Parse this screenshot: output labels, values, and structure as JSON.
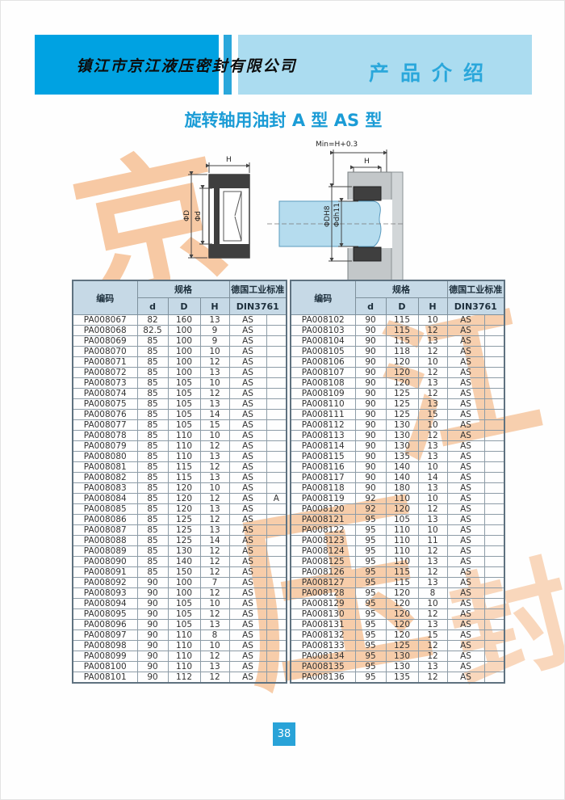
{
  "header": {
    "company": "镇江市京江液压密封有限公司",
    "section": "产品介绍"
  },
  "title": "旋转轴用油封 A 型  AS 型",
  "diagram": {
    "h_left": "H",
    "min_label": "Min=H+0.3",
    "h_right": "H",
    "phi_D": "ΦD",
    "phi_d": "Φd",
    "phi_DH8": "ΦDH8",
    "phi_dh11": "Φdh11"
  },
  "watermark": {
    "char1": "京",
    "char2": "江",
    "char3": "压",
    "char4": "封",
    "color": "#f3aa6e"
  },
  "colors": {
    "band_dark": "#00a2e2",
    "band_stripe": "#2aa7db",
    "band_light": "#abdcf0",
    "section_text": "#2aa7db",
    "title_text": "#1b9cd6",
    "table_header_bg": "#c6d9e6",
    "page_num_bg": "#29a3d8",
    "shaft_fill": "#b5dcee",
    "housing_fill": "#c3c7c9"
  },
  "tables": {
    "headers": {
      "code": "编码",
      "spec": "规格",
      "d": "d",
      "D": "D",
      "H": "H",
      "std": "德国工业标准",
      "std2": "DIN3761"
    },
    "left_rows": [
      [
        "PA008067",
        "82",
        "160",
        "13",
        "AS",
        ""
      ],
      [
        "PA008068",
        "82.5",
        "100",
        "9",
        "AS",
        ""
      ],
      [
        "PA008069",
        "85",
        "100",
        "9",
        "AS",
        ""
      ],
      [
        "PA008070",
        "85",
        "100",
        "10",
        "AS",
        ""
      ],
      [
        "PA008071",
        "85",
        "100",
        "12",
        "AS",
        ""
      ],
      [
        "PA008072",
        "85",
        "100",
        "13",
        "AS",
        ""
      ],
      [
        "PA008073",
        "85",
        "105",
        "10",
        "AS",
        ""
      ],
      [
        "PA008074",
        "85",
        "105",
        "12",
        "AS",
        ""
      ],
      [
        "PA008075",
        "85",
        "105",
        "13",
        "AS",
        ""
      ],
      [
        "PA008076",
        "85",
        "105",
        "14",
        "AS",
        ""
      ],
      [
        "PA008077",
        "85",
        "105",
        "15",
        "AS",
        ""
      ],
      [
        "PA008078",
        "85",
        "110",
        "10",
        "AS",
        ""
      ],
      [
        "PA008079",
        "85",
        "110",
        "12",
        "AS",
        ""
      ],
      [
        "PA008080",
        "85",
        "110",
        "13",
        "AS",
        ""
      ],
      [
        "PA008081",
        "85",
        "115",
        "12",
        "AS",
        ""
      ],
      [
        "PA008082",
        "85",
        "115",
        "13",
        "AS",
        ""
      ],
      [
        "PA008083",
        "85",
        "120",
        "10",
        "AS",
        ""
      ],
      [
        "PA008084",
        "85",
        "120",
        "12",
        "AS",
        "A"
      ],
      [
        "PA008085",
        "85",
        "120",
        "13",
        "AS",
        ""
      ],
      [
        "PA008086",
        "85",
        "125",
        "12",
        "AS",
        ""
      ],
      [
        "PA008087",
        "85",
        "125",
        "13",
        "AS",
        ""
      ],
      [
        "PA008088",
        "85",
        "125",
        "14",
        "AS",
        ""
      ],
      [
        "PA008089",
        "85",
        "130",
        "12",
        "AS",
        ""
      ],
      [
        "PA008090",
        "85",
        "140",
        "12",
        "AS",
        ""
      ],
      [
        "PA008091",
        "85",
        "150",
        "12",
        "AS",
        ""
      ],
      [
        "PA008092",
        "90",
        "100",
        "7",
        "AS",
        ""
      ],
      [
        "PA008093",
        "90",
        "100",
        "12",
        "AS",
        ""
      ],
      [
        "PA008094",
        "90",
        "105",
        "10",
        "AS",
        ""
      ],
      [
        "PA008095",
        "90",
        "105",
        "12",
        "AS",
        ""
      ],
      [
        "PA008096",
        "90",
        "105",
        "13",
        "AS",
        ""
      ],
      [
        "PA008097",
        "90",
        "110",
        "8",
        "AS",
        ""
      ],
      [
        "PA008098",
        "90",
        "110",
        "10",
        "AS",
        ""
      ],
      [
        "PA008099",
        "90",
        "110",
        "12",
        "AS",
        ""
      ],
      [
        "PA008100",
        "90",
        "110",
        "13",
        "AS",
        ""
      ],
      [
        "PA008101",
        "90",
        "112",
        "12",
        "AS",
        ""
      ]
    ],
    "right_rows": [
      [
        "PA008102",
        "90",
        "115",
        "10",
        "AS",
        ""
      ],
      [
        "PA008103",
        "90",
        "115",
        "12",
        "AS",
        ""
      ],
      [
        "PA008104",
        "90",
        "115",
        "13",
        "AS",
        ""
      ],
      [
        "PA008105",
        "90",
        "118",
        "12",
        "AS",
        ""
      ],
      [
        "PA008106",
        "90",
        "120",
        "10",
        "AS",
        ""
      ],
      [
        "PA008107",
        "90",
        "120",
        "12",
        "AS",
        ""
      ],
      [
        "PA008108",
        "90",
        "120",
        "13",
        "AS",
        ""
      ],
      [
        "PA008109",
        "90",
        "125",
        "12",
        "AS",
        ""
      ],
      [
        "PA008110",
        "90",
        "125",
        "13",
        "AS",
        ""
      ],
      [
        "PA008111",
        "90",
        "125",
        "15",
        "AS",
        ""
      ],
      [
        "PA008112",
        "90",
        "130",
        "10",
        "AS",
        ""
      ],
      [
        "PA008113",
        "90",
        "130",
        "12",
        "AS",
        ""
      ],
      [
        "PA008114",
        "90",
        "130",
        "13",
        "AS",
        ""
      ],
      [
        "PA008115",
        "90",
        "135",
        "13",
        "AS",
        ""
      ],
      [
        "PA008116",
        "90",
        "140",
        "10",
        "AS",
        ""
      ],
      [
        "PA008117",
        "90",
        "140",
        "14",
        "AS",
        ""
      ],
      [
        "PA008118",
        "90",
        "180",
        "13",
        "AS",
        ""
      ],
      [
        "PA008119",
        "92",
        "110",
        "10",
        "AS",
        ""
      ],
      [
        "PA008120",
        "92",
        "120",
        "12",
        "AS",
        ""
      ],
      [
        "PA008121",
        "95",
        "105",
        "13",
        "AS",
        ""
      ],
      [
        "PA008122",
        "95",
        "110",
        "10",
        "AS",
        ""
      ],
      [
        "PA008123",
        "95",
        "110",
        "11",
        "AS",
        ""
      ],
      [
        "PA008124",
        "95",
        "110",
        "12",
        "AS",
        ""
      ],
      [
        "PA008125",
        "95",
        "110",
        "13",
        "AS",
        ""
      ],
      [
        "PA008126",
        "95",
        "115",
        "12",
        "AS",
        ""
      ],
      [
        "PA008127",
        "95",
        "115",
        "13",
        "AS",
        ""
      ],
      [
        "PA008128",
        "95",
        "120",
        "8",
        "AS",
        ""
      ],
      [
        "PA008129",
        "95",
        "120",
        "10",
        "AS",
        ""
      ],
      [
        "PA008130",
        "95",
        "120",
        "12",
        "AS",
        ""
      ],
      [
        "PA008131",
        "95",
        "120",
        "13",
        "AS",
        ""
      ],
      [
        "PA008132",
        "95",
        "120",
        "15",
        "AS",
        ""
      ],
      [
        "PA008133",
        "95",
        "125",
        "12",
        "AS",
        ""
      ],
      [
        "PA008134",
        "95",
        "130",
        "12",
        "AS",
        ""
      ],
      [
        "PA008135",
        "95",
        "130",
        "13",
        "AS",
        ""
      ],
      [
        "PA008136",
        "95",
        "135",
        "12",
        "AS",
        ""
      ]
    ]
  },
  "footer": {
    "page": "38"
  }
}
